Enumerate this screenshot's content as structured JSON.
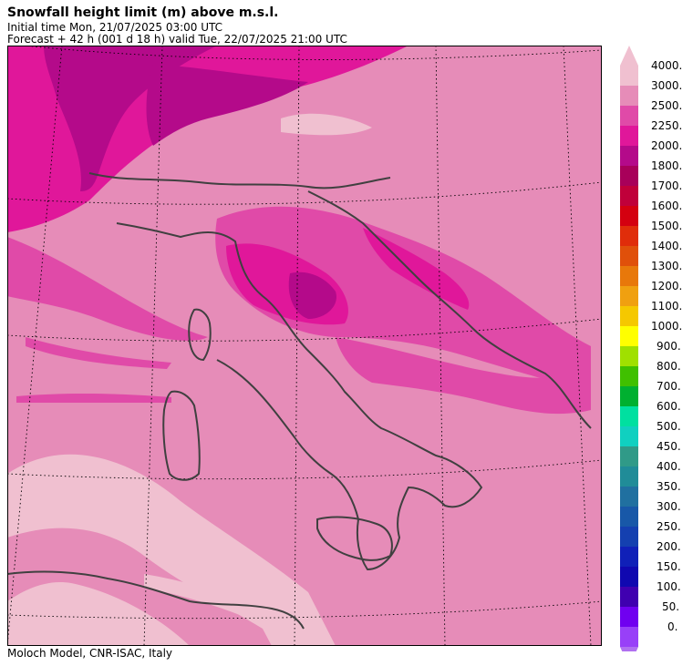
{
  "header": {
    "title": "Snowfall height limit (m) above m.s.l.",
    "initial_time": "Initial time  Mon, 21/07/2025  03:00 UTC",
    "forecast": "Forecast  +  42 h  (001 d 18 h)  valid Tue, 22/07/2025 21:00 UTC"
  },
  "footer": {
    "credit": "Moloch Model, CNR-ISAC, Italy"
  },
  "legend": {
    "levels": [
      {
        "label": "4000.",
        "color": "#f0c0d0"
      },
      {
        "label": "3000.",
        "color": "#e68cb8"
      },
      {
        "label": "2500.",
        "color": "#e04aa8"
      },
      {
        "label": "2250.",
        "color": "#e0179a"
      },
      {
        "label": "2000.",
        "color": "#b40a8a"
      },
      {
        "label": "1800.",
        "color": "#a8005a"
      },
      {
        "label": "1700.",
        "color": "#c0003a"
      },
      {
        "label": "1600.",
        "color": "#d40010"
      },
      {
        "label": "1500.",
        "color": "#e02d0a"
      },
      {
        "label": "1400.",
        "color": "#e0500a"
      },
      {
        "label": "1300.",
        "color": "#e8780a"
      },
      {
        "label": "1200.",
        "color": "#f0a010"
      },
      {
        "label": "1100.",
        "color": "#f5c800"
      },
      {
        "label": "1000.",
        "color": "#ffff00"
      },
      {
        "label": "900.",
        "color": "#a0e000"
      },
      {
        "label": "800.",
        "color": "#40c000"
      },
      {
        "label": "700.",
        "color": "#00b030"
      },
      {
        "label": "600.",
        "color": "#00e0a0"
      },
      {
        "label": "500.",
        "color": "#10d0c0"
      },
      {
        "label": "450.",
        "color": "#309a88"
      },
      {
        "label": "400.",
        "color": "#208c98"
      },
      {
        "label": "350.",
        "color": "#2070a0"
      },
      {
        "label": "300.",
        "color": "#1858a8"
      },
      {
        "label": "250.",
        "color": "#1440b0"
      },
      {
        "label": "200.",
        "color": "#1020b8"
      },
      {
        "label": "150.",
        "color": "#1008b0"
      },
      {
        "label": "100.",
        "color": "#4000b0"
      },
      {
        "label": "50.",
        "color": "#7000f0"
      },
      {
        "label": "0.",
        "color": "#9840f8"
      }
    ],
    "arrow_top_color": "#f0c0d0",
    "arrow_bottom_color": "#b070f0"
  },
  "map": {
    "base_color": "#e68cb8",
    "coast_color": "#404040",
    "grid_color": "#000000"
  }
}
